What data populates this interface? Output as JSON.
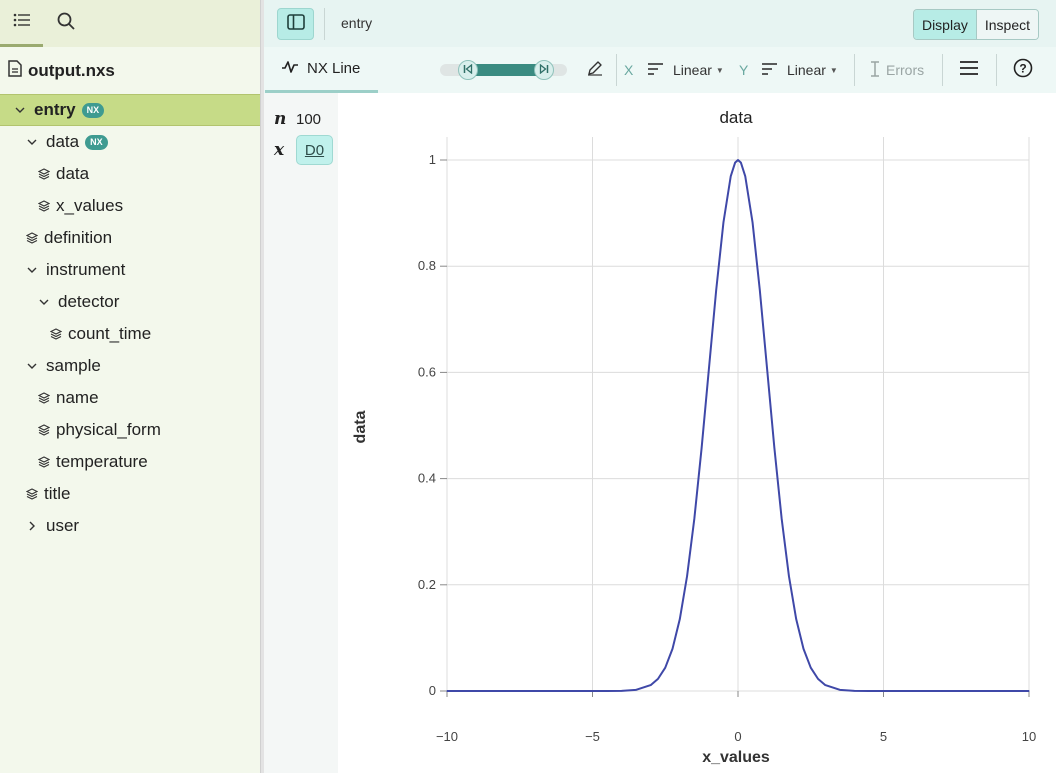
{
  "sidebar": {
    "file_name": "output.nxs",
    "nx_badge": "NX",
    "tree": [
      {
        "label": "entry",
        "depth": 0,
        "kind": "group",
        "expanded": true,
        "badge": true,
        "selected": true
      },
      {
        "label": "data",
        "depth": 1,
        "kind": "group",
        "expanded": true,
        "badge": true
      },
      {
        "label": "data",
        "depth": 2,
        "kind": "dataset"
      },
      {
        "label": "x_values",
        "depth": 2,
        "kind": "dataset"
      },
      {
        "label": "definition",
        "depth": 1,
        "kind": "dataset"
      },
      {
        "label": "instrument",
        "depth": 1,
        "kind": "group",
        "expanded": true
      },
      {
        "label": "detector",
        "depth": 2,
        "kind": "group",
        "expanded": true
      },
      {
        "label": "count_time",
        "depth": 3,
        "kind": "dataset"
      },
      {
        "label": "sample",
        "depth": 1,
        "kind": "group",
        "expanded": true
      },
      {
        "label": "name",
        "depth": 2,
        "kind": "dataset"
      },
      {
        "label": "physical_form",
        "depth": 2,
        "kind": "dataset"
      },
      {
        "label": "temperature",
        "depth": 2,
        "kind": "dataset"
      },
      {
        "label": "title",
        "depth": 1,
        "kind": "dataset"
      },
      {
        "label": "user",
        "depth": 1,
        "kind": "group",
        "expanded": false
      }
    ]
  },
  "topbar": {
    "breadcrumb": "entry",
    "display_label": "Display",
    "inspect_label": "Inspect"
  },
  "toolbar": {
    "vis_tab_label": "NX Line",
    "x_letter": "X",
    "x_scale": "Linear",
    "y_letter": "Y",
    "y_scale": "Linear",
    "errors_label": "Errors",
    "slider_range": [
      0.22,
      0.82
    ]
  },
  "dims": {
    "n_letter": "n",
    "n_value": "100",
    "x_letter": "x",
    "x_value": "D0"
  },
  "chart_data": {
    "type": "line",
    "title": "data",
    "xlabel": "x_values",
    "ylabel": "data",
    "xlim": [
      -10,
      10
    ],
    "ylim": [
      0,
      1
    ],
    "xticks": [
      -10,
      -5,
      0,
      5,
      10
    ],
    "xtick_labels": [
      "−10",
      "−5",
      "0",
      "5",
      "10"
    ],
    "yticks": [
      0,
      0.2,
      0.4,
      0.6,
      0.8,
      1
    ],
    "ytick_labels": [
      "0",
      "0.2",
      "0.4",
      "0.6",
      "0.8",
      "1"
    ],
    "grid": true,
    "series": [
      {
        "color": "#3f48a8",
        "x": [
          -10,
          -9,
          -8,
          -7,
          -6,
          -5,
          -4.5,
          -4,
          -3.5,
          -3,
          -2.75,
          -2.5,
          -2.25,
          -2,
          -1.75,
          -1.5,
          -1.25,
          -1,
          -0.75,
          -0.5,
          -0.25,
          -0.1,
          0,
          0.1,
          0.25,
          0.5,
          0.75,
          1,
          1.25,
          1.5,
          1.75,
          2,
          2.25,
          2.5,
          2.75,
          3,
          3.5,
          4,
          4.5,
          5,
          6,
          7,
          8,
          9,
          10
        ],
        "y": [
          0,
          0,
          0,
          0,
          0,
          0,
          0.0001,
          0.0003,
          0.0022,
          0.0111,
          0.0228,
          0.0439,
          0.0796,
          0.1353,
          0.2163,
          0.3247,
          0.4578,
          0.6065,
          0.7548,
          0.8825,
          0.9692,
          0.995,
          1,
          0.995,
          0.9692,
          0.8825,
          0.7548,
          0.6065,
          0.4578,
          0.3247,
          0.2163,
          0.1353,
          0.0796,
          0.0439,
          0.0228,
          0.0111,
          0.0022,
          0.0003,
          0.0001,
          0,
          0,
          0,
          0,
          0,
          0
        ]
      }
    ]
  }
}
